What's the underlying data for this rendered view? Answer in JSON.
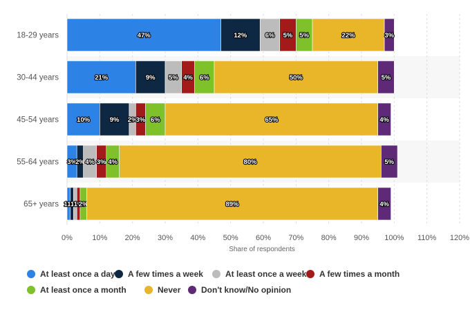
{
  "chart_data": {
    "type": "bar",
    "orientation": "horizontal",
    "stacked": true,
    "categories": [
      "18-29 years",
      "30-44 years",
      "45-54 years",
      "55-64 years",
      "65+ years"
    ],
    "series": [
      {
        "name": "At least once a day",
        "color": "#2d82e6",
        "values": [
          47,
          21,
          10,
          3,
          1
        ],
        "labels": [
          "47%",
          "21%",
          "10%",
          "3%",
          "1%"
        ]
      },
      {
        "name": "A few times a week",
        "color": "#0e2742",
        "values": [
          12,
          9,
          9,
          2,
          1
        ],
        "labels": [
          "12%",
          "9%",
          "9%",
          "2%",
          "1%"
        ]
      },
      {
        "name": "At least once a week",
        "color": "#bcbcbc",
        "values": [
          6,
          5,
          2,
          4,
          1
        ],
        "labels": [
          "6%",
          "5%",
          "2%",
          "4%",
          "1%"
        ]
      },
      {
        "name": "A few times a month",
        "color": "#a31a1a",
        "values": [
          5,
          4,
          3,
          3,
          1
        ],
        "labels": [
          "5%",
          "4%",
          "3%",
          "3%",
          "1%"
        ]
      },
      {
        "name": "At least once a month",
        "color": "#7ec12a",
        "values": [
          5,
          6,
          6,
          4,
          2
        ],
        "labels": [
          "5%",
          "6%",
          "6%",
          "4%",
          "2%"
        ]
      },
      {
        "name": "Never",
        "color": "#e9b62a",
        "values": [
          22,
          50,
          65,
          80,
          89
        ],
        "labels": [
          "22%",
          "50%",
          "65%",
          "80%",
          "89%"
        ]
      },
      {
        "name": "Don't know/No opinion",
        "color": "#5e2a78",
        "values": [
          3,
          5,
          4,
          5,
          4
        ],
        "labels": [
          "3%",
          "5%",
          "4%",
          "5%",
          "4%"
        ]
      }
    ],
    "xlabel": "Share of respondents",
    "ylabel": "",
    "xlim": [
      0,
      120
    ],
    "xticks": [
      "0%",
      "10%",
      "20%",
      "30%",
      "40%",
      "50%",
      "60%",
      "70%",
      "80%",
      "90%",
      "100%",
      "110%",
      "120%"
    ],
    "grid": true,
    "legend_position": "bottom"
  }
}
